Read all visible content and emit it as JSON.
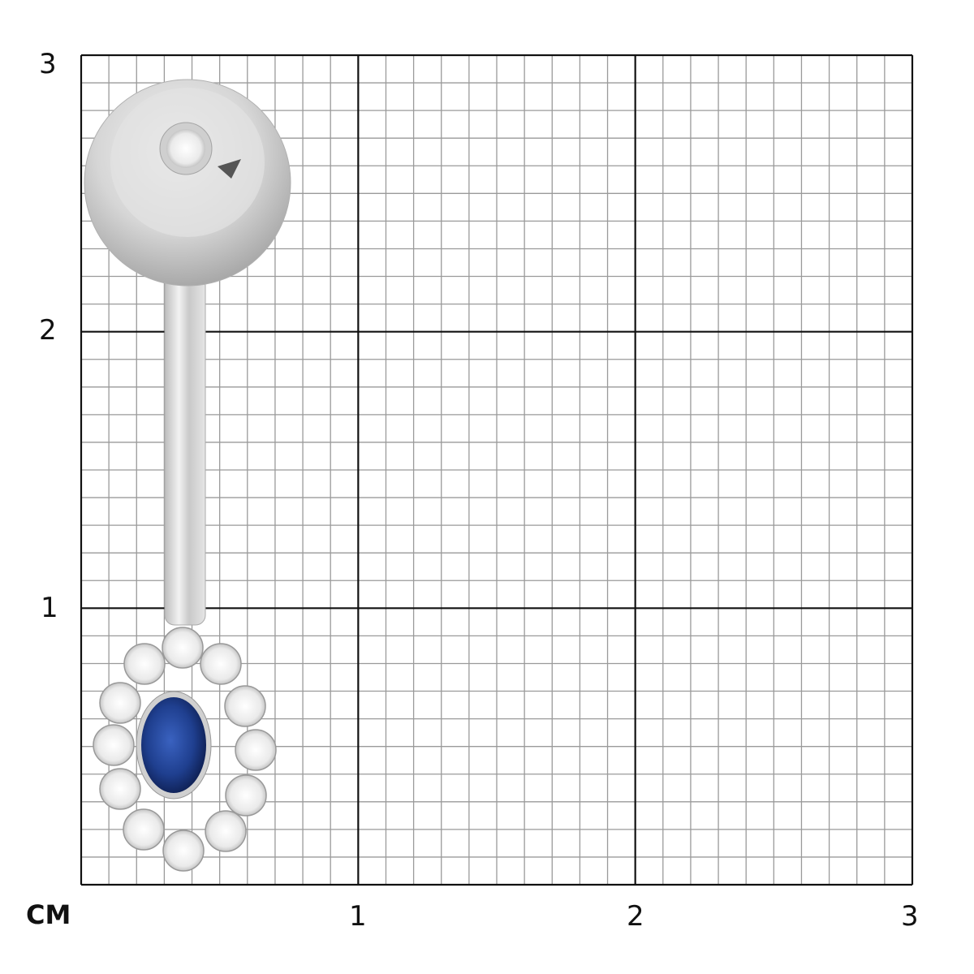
{
  "unit_label": "CM",
  "x_ticks": [
    "1",
    "2",
    "3"
  ],
  "y_ticks": [
    "1",
    "2",
    "3"
  ],
  "grid": {
    "range_cm": 3,
    "minor_per_cm": 10
  },
  "colors": {
    "major_line": "#111111",
    "minor_line": "#9a9a9a",
    "metal": "#d9d9d9",
    "sapphire": "#1f3f8f",
    "diamond": "#f2f2f2"
  },
  "product": {
    "item": "belly-bar-piercing",
    "icons": [
      "ball-top-icon",
      "sapphire-icon",
      "diamond-halo-icon"
    ]
  }
}
